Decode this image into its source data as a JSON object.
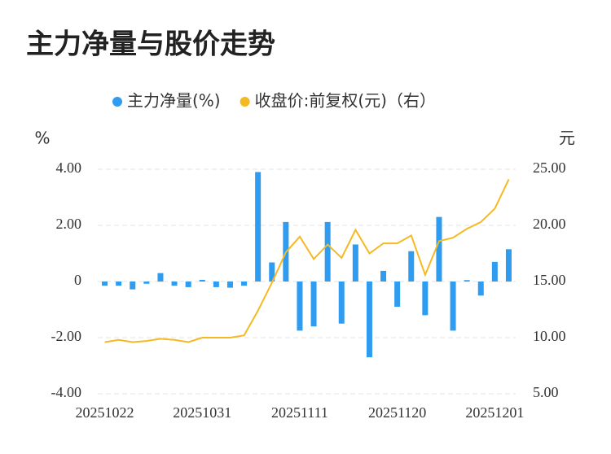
{
  "chart_data": {
    "type": "bar_line",
    "title": "主力净量与股价走势",
    "y_label": "%",
    "y2_label": "元",
    "categories": [
      "20251022",
      null,
      null,
      null,
      null,
      null,
      null,
      "20251031",
      null,
      null,
      null,
      null,
      null,
      null,
      "20251111",
      null,
      null,
      null,
      null,
      null,
      null,
      "20251120",
      null,
      null,
      null,
      null,
      null,
      null,
      "20251201",
      null
    ],
    "series": [
      {
        "name": "主力净量(%)",
        "type": "bar",
        "color": "#2f9cf0",
        "axis": "y",
        "values": [
          -0.15,
          -0.15,
          -0.28,
          -0.08,
          0.3,
          -0.15,
          -0.2,
          0.06,
          -0.2,
          -0.22,
          -0.15,
          3.9,
          0.68,
          2.12,
          -1.75,
          -1.6,
          2.12,
          -1.5,
          1.32,
          -2.7,
          0.38,
          -0.9,
          1.08,
          -1.2,
          2.3,
          -1.75,
          0.05,
          -0.5,
          0.7,
          1.15
        ]
      },
      {
        "name": "收盘价:前复权(元)（右）",
        "type": "line",
        "color": "#f5b921",
        "axis": "y2",
        "values": [
          9.6,
          9.8,
          9.6,
          9.7,
          9.9,
          9.8,
          9.6,
          10.0,
          10.0,
          10.0,
          10.2,
          12.4,
          14.9,
          17.6,
          19.0,
          17.0,
          18.3,
          17.1,
          19.6,
          17.5,
          18.4,
          18.4,
          19.1,
          15.6,
          18.6,
          18.9,
          19.7,
          20.3,
          21.5,
          24.1
        ]
      }
    ],
    "ylim": [
      -4,
      4
    ],
    "yticks": [
      {
        "value": 4,
        "label": "4.00"
      },
      {
        "value": 2,
        "label": "2.00"
      },
      0,
      {
        "value": -2,
        "label": "-2.00"
      },
      {
        "value": -4,
        "label": "-4.00"
      }
    ],
    "y2lim": [
      5,
      25
    ],
    "y2ticks": [
      {
        "value": 25,
        "label": "25.00"
      },
      {
        "value": 20,
        "label": "20.00"
      },
      {
        "value": 15,
        "label": "15.00"
      },
      {
        "value": 10,
        "label": "10.00"
      },
      {
        "value": 5,
        "label": "5.00"
      }
    ],
    "grid": true
  }
}
